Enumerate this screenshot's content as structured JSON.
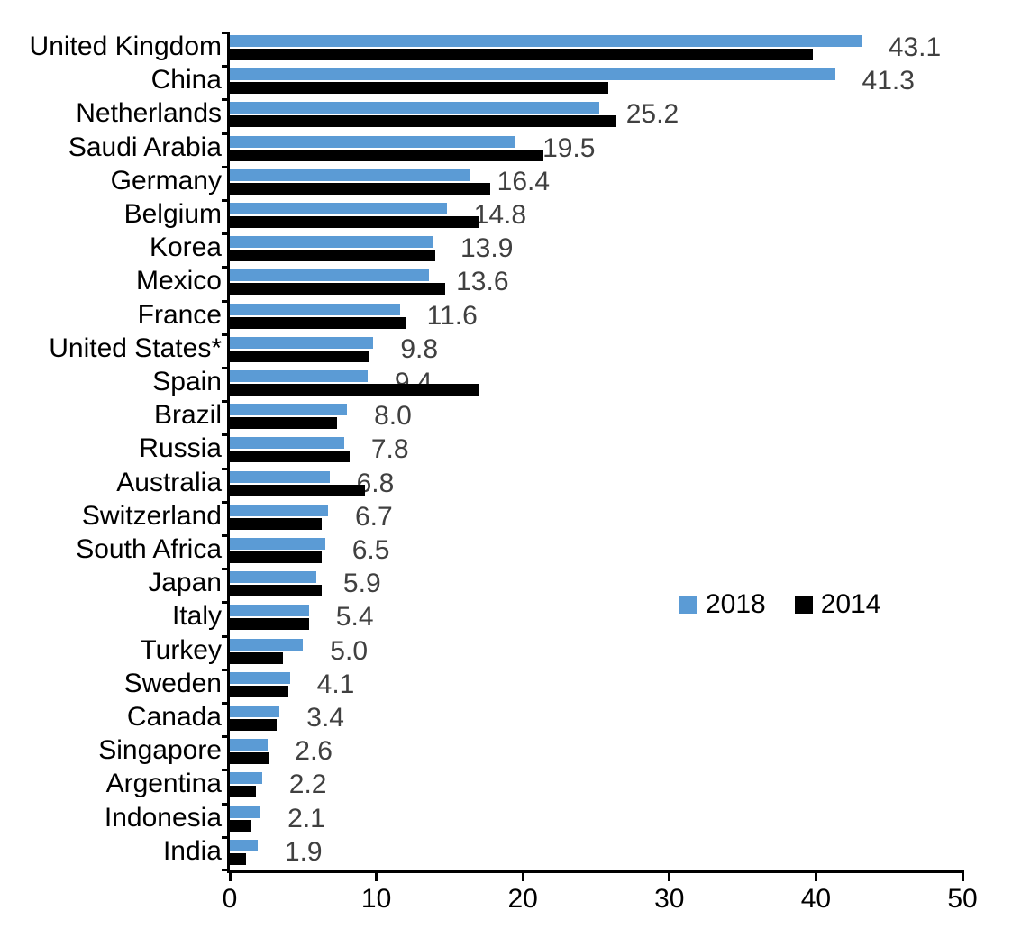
{
  "chart_data": {
    "type": "bar",
    "orientation": "horizontal",
    "title": "",
    "xlabel": "",
    "ylabel": "",
    "xlim": [
      0,
      50
    ],
    "x_ticks": [
      0,
      10,
      20,
      30,
      40,
      50
    ],
    "grid": false,
    "legend_position": "middle-right",
    "value_label_series": "2018",
    "value_label_color": "#404040",
    "categories": [
      "United Kingdom",
      "China",
      "Netherlands",
      "Saudi Arabia",
      "Germany",
      "Belgium",
      "Korea",
      "Mexico",
      "France",
      "United States*",
      "Spain",
      "Brazil",
      "Russia",
      "Australia",
      "Switzerland",
      "South Africa",
      "Japan",
      "Italy",
      "Turkey",
      "Sweden",
      "Canada",
      "Singapore",
      "Argentina",
      "Indonesia",
      "India"
    ],
    "series": [
      {
        "name": "2018",
        "color": "#5B9BD5",
        "values": [
          43.1,
          41.3,
          25.2,
          19.5,
          16.4,
          14.8,
          13.9,
          13.6,
          11.6,
          9.8,
          9.4,
          8.0,
          7.8,
          6.8,
          6.7,
          6.5,
          5.9,
          5.4,
          5.0,
          4.1,
          3.4,
          2.6,
          2.2,
          2.1,
          1.9
        ],
        "data_labels": [
          "43.1",
          "41.3",
          "25.2",
          "19.5",
          "16.4",
          "14.8",
          "13.9",
          "13.6",
          "11.6",
          "9.8",
          "9.4",
          "8.0",
          "7.8",
          "6.8",
          "6.7",
          "6.5",
          "5.9",
          "5.4",
          "5.0",
          "4.1",
          "3.4",
          "2.6",
          "2.2",
          "2.1",
          "1.9"
        ]
      },
      {
        "name": "2014",
        "color": "#000000",
        "values": [
          39.8,
          25.8,
          26.4,
          21.4,
          17.8,
          17.0,
          14.0,
          14.7,
          12.0,
          9.5,
          17.0,
          7.3,
          8.2,
          9.2,
          6.3,
          6.3,
          6.3,
          5.4,
          3.6,
          4.0,
          3.2,
          2.7,
          1.8,
          1.5,
          1.1
        ]
      }
    ]
  }
}
